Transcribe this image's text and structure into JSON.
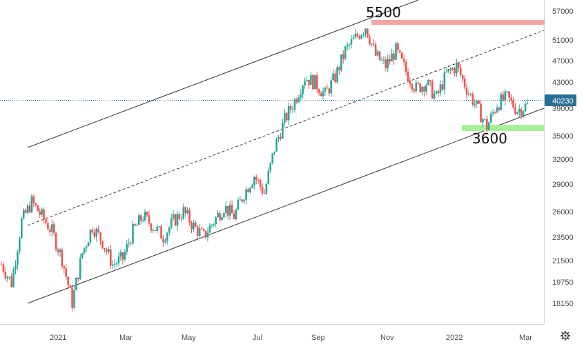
{
  "chart_data": {
    "type": "candlestick",
    "title": "",
    "xlabel": "",
    "ylabel": "",
    "scale": "log",
    "ylim": [
      17000,
      61000
    ],
    "y_ticks": [
      "57000",
      "51000",
      "47000",
      "43000",
      "39000",
      "35000",
      "32000",
      "29000",
      "26000",
      "23500",
      "21500",
      "19750",
      "18150"
    ],
    "x_ticks": [
      "2021",
      "Mar",
      "May",
      "Jul",
      "Sep",
      "Nov",
      "2022",
      "Mar"
    ],
    "last_price": "40230",
    "annotations": [
      "5500",
      "3600"
    ],
    "colors": {
      "up": "#26a69a",
      "down": "#ef5350",
      "resistance": "#f4a5a5",
      "support": "#a8ef9c",
      "price_line": "#2a6f97",
      "channel": "#333333",
      "axis_text": "#4a4a4a"
    },
    "series": [
      {
        "values": [
          {
            "x": "2020-11",
            "y": 21500
          },
          {
            "x": "2020-11",
            "y": 20000
          },
          {
            "x": "2020-12",
            "y": 25500
          },
          {
            "x": "2020-12",
            "y": 27500
          },
          {
            "x": "2020-12",
            "y": 26000
          },
          {
            "x": "2021-01",
            "y": 24500
          },
          {
            "x": "2021-01",
            "y": 22000
          },
          {
            "x": "2021-01",
            "y": 18500
          },
          {
            "x": "2021-02",
            "y": 22500
          },
          {
            "x": "2021-02",
            "y": 25000
          },
          {
            "x": "2021-02",
            "y": 23500
          },
          {
            "x": "2021-02",
            "y": 21500
          },
          {
            "x": "2021-03",
            "y": 22000
          },
          {
            "x": "2021-03",
            "y": 24500
          },
          {
            "x": "2021-03",
            "y": 26000
          },
          {
            "x": "2021-04",
            "y": 25000
          },
          {
            "x": "2021-04",
            "y": 24000
          },
          {
            "x": "2021-04",
            "y": 25500
          },
          {
            "x": "2021-05",
            "y": 26500
          },
          {
            "x": "2021-05",
            "y": 25000
          },
          {
            "x": "2021-05",
            "y": 24000
          },
          {
            "x": "2021-06",
            "y": 25500
          },
          {
            "x": "2021-06",
            "y": 27000
          },
          {
            "x": "2021-06",
            "y": 26000
          },
          {
            "x": "2021-06",
            "y": 28500
          },
          {
            "x": "2021-07",
            "y": 30500
          },
          {
            "x": "2021-07",
            "y": 28500
          },
          {
            "x": "2021-07",
            "y": 34000
          },
          {
            "x": "2021-08",
            "y": 38000
          },
          {
            "x": "2021-08",
            "y": 41000
          },
          {
            "x": "2021-08",
            "y": 45000
          },
          {
            "x": "2021-09",
            "y": 44000
          },
          {
            "x": "2021-09",
            "y": 42000
          },
          {
            "x": "2021-09",
            "y": 45000
          },
          {
            "x": "2021-10",
            "y": 50000
          },
          {
            "x": "2021-10",
            "y": 52500
          },
          {
            "x": "2021-10",
            "y": 55000
          },
          {
            "x": "2021-10",
            "y": 49000
          },
          {
            "x": "2021-11",
            "y": 47000
          },
          {
            "x": "2021-11",
            "y": 50000
          },
          {
            "x": "2021-11",
            "y": 46000
          },
          {
            "x": "2021-11",
            "y": 43000
          },
          {
            "x": "2021-12",
            "y": 44000
          },
          {
            "x": "2021-12",
            "y": 41500
          },
          {
            "x": "2021-12",
            "y": 45500
          },
          {
            "x": "2022-01",
            "y": 47000
          },
          {
            "x": "2022-01",
            "y": 43000
          },
          {
            "x": "2022-01",
            "y": 40000
          },
          {
            "x": "2022-01",
            "y": 37000
          },
          {
            "x": "2022-02",
            "y": 40500
          },
          {
            "x": "2022-02",
            "y": 41500
          },
          {
            "x": "2022-02",
            "y": 39500
          },
          {
            "x": "2022-02",
            "y": 40230
          }
        ]
      }
    ]
  }
}
